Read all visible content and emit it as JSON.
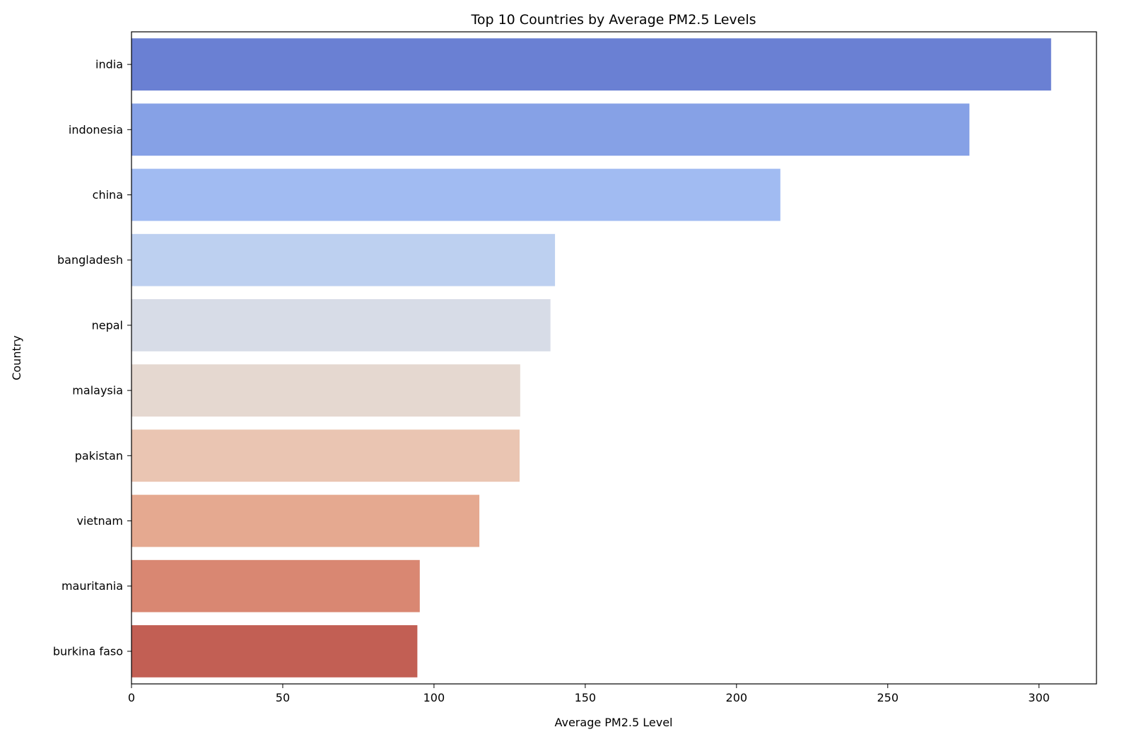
{
  "chart_data": {
    "type": "bar",
    "orientation": "horizontal",
    "title": "Top 10 Countries by Average PM2.5 Levels",
    "xlabel": "Average PM2.5 Level",
    "ylabel": "Country",
    "xlim": [
      0,
      319
    ],
    "xticks": [
      0,
      50,
      100,
      150,
      200,
      250,
      300
    ],
    "grid": false,
    "legend": "none",
    "categories": [
      "india",
      "indonesia",
      "china",
      "bangladesh",
      "nepal",
      "malaysia",
      "pakistan",
      "vietnam",
      "mauritania",
      "burkina faso"
    ],
    "values": [
      304,
      277,
      214.5,
      140,
      138.5,
      128.5,
      128.3,
      115,
      95.3,
      94.5
    ],
    "colors": [
      "#6a80d3",
      "#86a1e6",
      "#a1bbf2",
      "#bdd0f0",
      "#d7dce7",
      "#e5d8d0",
      "#eac5b2",
      "#e5a990",
      "#d98772",
      "#c25f54"
    ]
  }
}
